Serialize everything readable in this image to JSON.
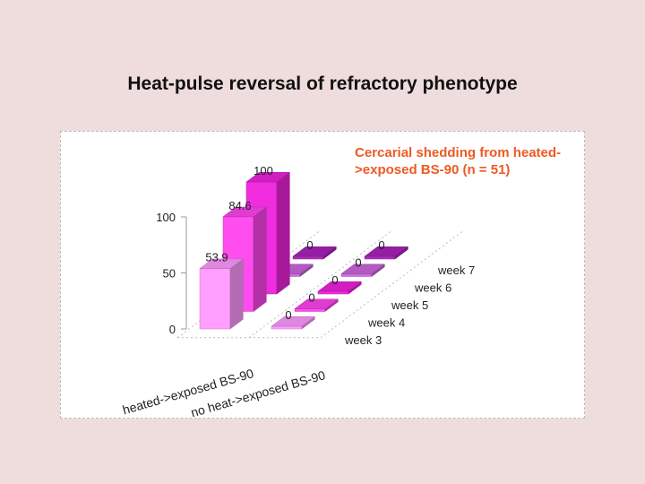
{
  "slide": {
    "title": "Heat-pulse reversal of refractory phenotype"
  },
  "chart_data": {
    "type": "bar",
    "title": "Cercarial shedding from heated->exposed BS-90 (n = 51)",
    "categories": [
      "heated->exposed BS-90",
      "no heat->exposed BS-90"
    ],
    "series": [
      {
        "name": "week 3",
        "values": [
          53.9,
          0
        ],
        "color": "#ff99ff"
      },
      {
        "name": "week 4",
        "values": [
          84.6,
          0
        ],
        "color": "#ff44ee"
      },
      {
        "name": "week 5",
        "values": [
          100,
          0
        ],
        "color": "#ee22dd"
      },
      {
        "name": "week 6",
        "values": [
          0,
          0
        ],
        "color": "#cc66dd"
      },
      {
        "name": "week 7",
        "values": [
          0,
          0
        ],
        "color": "#aa22bb"
      }
    ],
    "z_axis": {
      "ticks": [
        0,
        50,
        100
      ],
      "range": [
        0,
        100
      ]
    },
    "grid": false,
    "legend": "none"
  }
}
